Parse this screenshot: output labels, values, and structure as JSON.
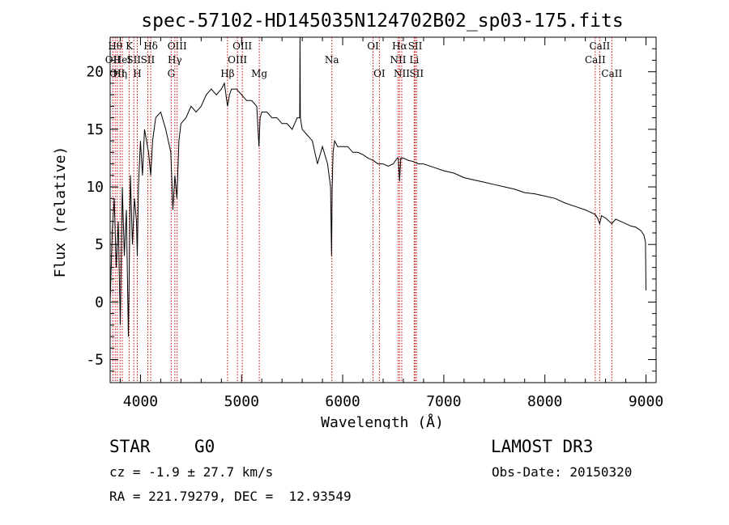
{
  "chart_data": {
    "type": "line",
    "title": "spec-57102-HD145035N124702B02_sp03-175.fits",
    "xlabel": "Wavelength (Å)",
    "ylabel": "Flux (relative)",
    "xlim": [
      3700,
      9100
    ],
    "ylim": [
      -7,
      23
    ],
    "xticks": [
      4000,
      5000,
      6000,
      7000,
      8000,
      9000
    ],
    "xtick_labels": [
      "4000",
      "5000",
      "6000",
      "7000",
      "8000",
      "9000"
    ],
    "yticks": [
      -5,
      0,
      5,
      10,
      15,
      20
    ],
    "ytick_labels": [
      "-5",
      "0",
      "5",
      "10",
      "15",
      "20"
    ],
    "grid": false,
    "series": [
      {
        "name": "spectrum",
        "x": [
          3700,
          3720,
          3740,
          3760,
          3780,
          3800,
          3820,
          3840,
          3860,
          3880,
          3900,
          3920,
          3940,
          3960,
          3968,
          3980,
          4000,
          4020,
          4040,
          4060,
          4080,
          4101,
          4120,
          4150,
          4200,
          4250,
          4300,
          4320,
          4340,
          4360,
          4380,
          4400,
          4450,
          4500,
          4550,
          4600,
          4650,
          4700,
          4750,
          4800,
          4830,
          4861,
          4880,
          4900,
          4950,
          5000,
          5050,
          5100,
          5150,
          5172,
          5183,
          5200,
          5250,
          5300,
          5350,
          5400,
          5450,
          5500,
          5550,
          5575,
          5578,
          5581,
          5600,
          5650,
          5700,
          5750,
          5800,
          5850,
          5880,
          5890,
          5896,
          5905,
          5920,
          5950,
          6000,
          6050,
          6100,
          6150,
          6200,
          6250,
          6300,
          6350,
          6400,
          6450,
          6500,
          6540,
          6550,
          6563,
          6575,
          6600,
          6650,
          6700,
          6750,
          6800,
          6900,
          7000,
          7100,
          7200,
          7300,
          7400,
          7500,
          7600,
          7700,
          7800,
          7900,
          8000,
          8100,
          8200,
          8300,
          8400,
          8450,
          8498,
          8520,
          8542,
          8560,
          8600,
          8662,
          8700,
          8750,
          8800,
          8850,
          8900,
          8950,
          8980,
          8995,
          9000
        ],
        "y": [
          0,
          6,
          9,
          3,
          7,
          -2,
          10,
          4,
          8,
          -3,
          11,
          5,
          9,
          7,
          4,
          10,
          14,
          11,
          15,
          14,
          13,
          11,
          14,
          16,
          16.5,
          15,
          13,
          8,
          11,
          9,
          14,
          15.5,
          16,
          17,
          16.5,
          17,
          18,
          18.5,
          18,
          18.5,
          19,
          17,
          18,
          18.5,
          18.5,
          18,
          17.5,
          17.5,
          17,
          13.5,
          16,
          16.5,
          16.5,
          16,
          16,
          15.5,
          15.5,
          15,
          16,
          16,
          23,
          16,
          15,
          14.5,
          14,
          12,
          13.5,
          12,
          10,
          4,
          10,
          13,
          14,
          13.5,
          13.5,
          13.5,
          13,
          13,
          12.8,
          12.5,
          12.3,
          12,
          12,
          11.8,
          12,
          12.5,
          12.5,
          10.5,
          12.5,
          12.5,
          12.3,
          12.2,
          12,
          12,
          11.7,
          11.4,
          11.2,
          10.8,
          10.6,
          10.4,
          10.2,
          10,
          9.8,
          9.5,
          9.4,
          9.2,
          9,
          8.6,
          8.3,
          8,
          7.8,
          7.6,
          7.3,
          6.8,
          7.5,
          7.3,
          6.8,
          7.2,
          7,
          6.8,
          6.6,
          6.5,
          6.2,
          5.8,
          5.2,
          1
        ]
      }
    ],
    "line_markers": [
      {
        "wavelength": 3727,
        "label": "OII",
        "row": 2
      },
      {
        "wavelength": 3750,
        "label": "Hθ",
        "row": 1
      },
      {
        "wavelength": 3770,
        "label": "OII",
        "row": 3
      },
      {
        "wavelength": 3798,
        "label": "Hη",
        "row": 3
      },
      {
        "wavelength": 3820,
        "label": "HeI",
        "row": 2
      },
      {
        "wavelength": 3889,
        "label": "K",
        "row": 1
      },
      {
        "wavelength": 3934,
        "label": "SII",
        "row": 2
      },
      {
        "wavelength": 3968,
        "label": "H",
        "row": 3
      },
      {
        "wavelength": 4101,
        "label": "Hδ",
        "row": 1
      },
      {
        "wavelength": 4072,
        "label": "SII",
        "row": 2
      },
      {
        "wavelength": 4304,
        "label": "G",
        "row": 3
      },
      {
        "wavelength": 4340,
        "label": "Hγ",
        "row": 2
      },
      {
        "wavelength": 4363,
        "label": "OIII",
        "row": 1
      },
      {
        "wavelength": 4861,
        "label": "Hβ",
        "row": 3
      },
      {
        "wavelength": 4959,
        "label": "OIII",
        "row": 2
      },
      {
        "wavelength": 5007,
        "label": "OIII",
        "row": 1
      },
      {
        "wavelength": 5175,
        "label": "Mg",
        "row": 3
      },
      {
        "wavelength": 5893,
        "label": "Na",
        "row": 2
      },
      {
        "wavelength": 6300,
        "label": "OI",
        "row": 1
      },
      {
        "wavelength": 6363,
        "label": "OI",
        "row": 3
      },
      {
        "wavelength": 6548,
        "label": "NII",
        "row": 2
      },
      {
        "wavelength": 6563,
        "label": "Hα",
        "row": 1
      },
      {
        "wavelength": 6584,
        "label": "NII",
        "row": 3
      },
      {
        "wavelength": 6707,
        "label": "Li",
        "row": 2
      },
      {
        "wavelength": 6717,
        "label": "SII",
        "row": 1
      },
      {
        "wavelength": 6731,
        "label": "SII",
        "row": 3
      },
      {
        "wavelength": 8498,
        "label": "CaII",
        "row": 2
      },
      {
        "wavelength": 8542,
        "label": "CaII",
        "row": 1
      },
      {
        "wavelength": 8662,
        "label": "CaII",
        "row": 3
      }
    ]
  },
  "info": {
    "object_class": "STAR",
    "subclass": "G0",
    "survey": "LAMOST DR3",
    "cz_text": "cz = -1.9 ± 27.7 km/s",
    "obs_date_text": "Obs-Date: 20150320",
    "coords_text": "RA = 221.79279, DEC =  12.93549"
  },
  "colors": {
    "line_marker": "#cc0000",
    "spectrum": "#000000",
    "axes": "#000000"
  }
}
